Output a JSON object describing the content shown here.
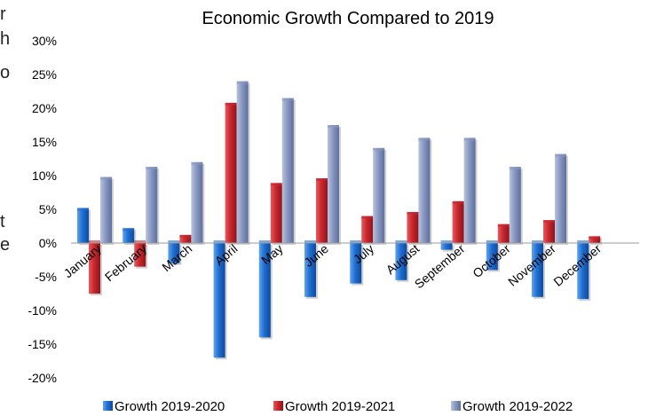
{
  "chart_data": {
    "type": "bar",
    "title": "Economic Growth Compared to 2019",
    "xlabel": "",
    "ylabel": "",
    "ylim": [
      -20,
      30
    ],
    "yticks": [
      "30%",
      "25%",
      "20%",
      "15%",
      "10%",
      "5%",
      "0%",
      "-5%",
      "-10%",
      "-15%",
      "-20%"
    ],
    "grid": false,
    "legend_position": "bottom",
    "categories": [
      "January",
      "February",
      "March",
      "April",
      "May",
      "June",
      "July",
      "August",
      "September",
      "October",
      "November",
      "December"
    ],
    "series": [
      {
        "name": "Growth 2019-2020",
        "color": "#1f6fd0",
        "values": [
          5.2,
          2.2,
          -3.0,
          -17.0,
          -14.0,
          -8.0,
          -6.0,
          -5.5,
          -1.0,
          -4.0,
          -8.0,
          -8.3
        ]
      },
      {
        "name": "Growth 2019-2021",
        "color": "#c8282e",
        "values": [
          -7.5,
          -3.5,
          1.2,
          20.8,
          8.9,
          9.6,
          4.0,
          4.6,
          6.2,
          2.8,
          3.4,
          1.0
        ]
      },
      {
        "name": "Growth 2019-2022",
        "color": "#8898c2",
        "values": [
          9.8,
          11.3,
          12.0,
          24.0,
          21.5,
          17.5,
          14.1,
          15.6,
          15.6,
          11.3,
          13.2,
          null
        ]
      }
    ]
  },
  "edge_fragments": [
    "r",
    "h",
    "o",
    "t",
    "e"
  ]
}
